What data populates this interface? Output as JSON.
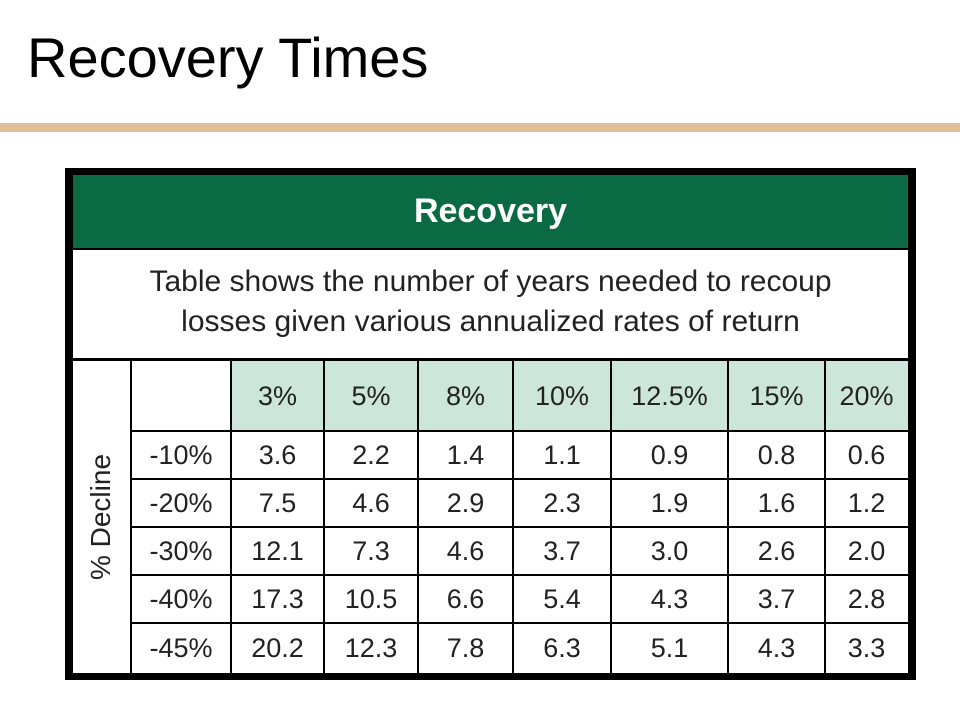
{
  "slide": {
    "title": "Recovery Times"
  },
  "table": {
    "heading": "Recovery",
    "caption_line1": "Table shows the number of years needed to recoup",
    "caption_line2": "losses given various annualized rates of return",
    "side_label": "% Decline",
    "columns": [
      "3%",
      "5%",
      "8%",
      "10%",
      "12.5%",
      "15%",
      "20%"
    ],
    "rows": [
      {
        "decline": "-10%",
        "values": [
          "3.6",
          "2.2",
          "1.4",
          "1.1",
          "0.9",
          "0.8",
          "0.6"
        ]
      },
      {
        "decline": "-20%",
        "values": [
          "7.5",
          "4.6",
          "2.9",
          "2.3",
          "1.9",
          "1.6",
          "1.2"
        ]
      },
      {
        "decline": "-30%",
        "values": [
          "12.1",
          "7.3",
          "4.6",
          "3.7",
          "3.0",
          "2.6",
          "2.0"
        ]
      },
      {
        "decline": "-40%",
        "values": [
          "17.3",
          "10.5",
          "6.6",
          "5.4",
          "4.3",
          "3.7",
          "2.8"
        ]
      },
      {
        "decline": "-45%",
        "values": [
          "20.2",
          "12.3",
          "7.8",
          "6.3",
          "5.1",
          "4.3",
          "3.3"
        ]
      }
    ],
    "colors": {
      "header_green": "#0a6a43",
      "column_header_fill": "#cde6dc",
      "title_rule": "#e2bd98"
    }
  }
}
